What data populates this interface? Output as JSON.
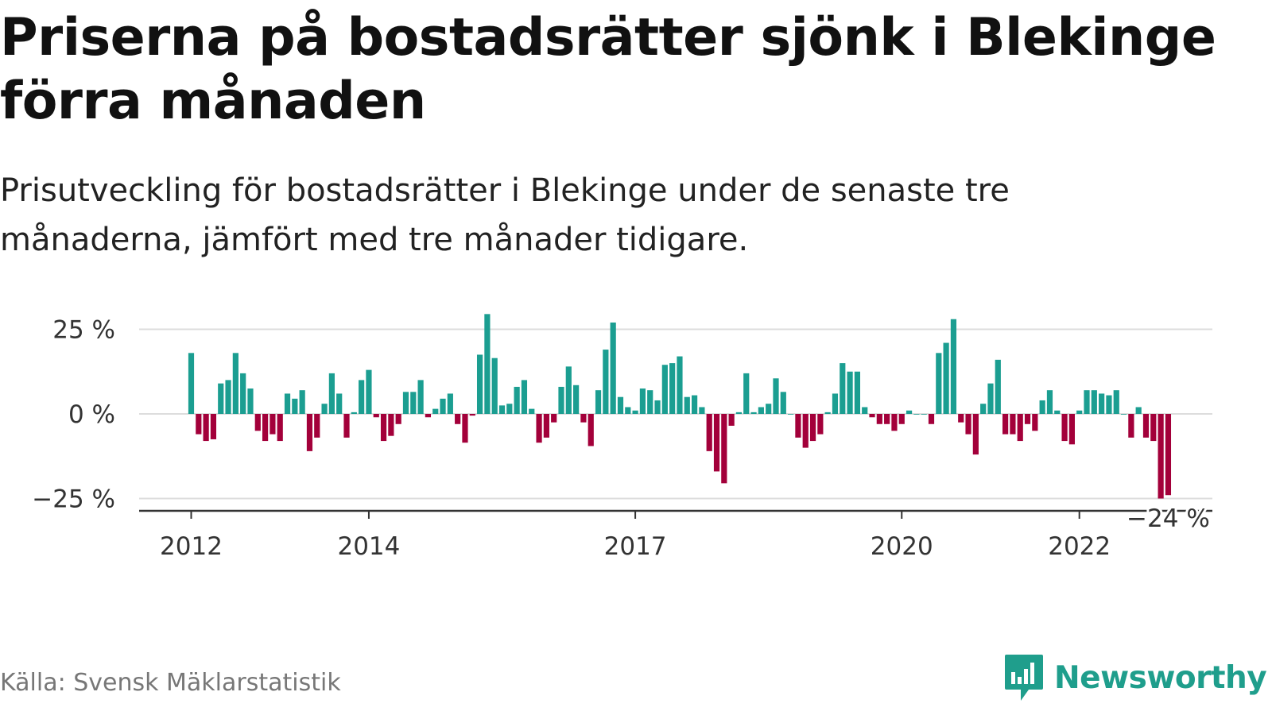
{
  "title": "Priserna på bostadsrätter sjönk i Blekinge förra månaden",
  "subtitle": "Prisutveckling för bostadsrätter i Blekinge under de senaste tre månaderna, jämfört med tre månader tidigare.",
  "source": "Källa: Svensk Mäklarstatistik",
  "brand": {
    "name": "Newsworthy",
    "logo_icon": "newsworthy-chart-bubble-icon"
  },
  "colors": {
    "positive": "#1b9e91",
    "negative": "#a3003a",
    "grid": "#dddddd",
    "axis": "#333333",
    "brand": "#1f9e8c"
  },
  "chart_data": {
    "type": "bar",
    "x_start": "2012-01",
    "y_unit": "%",
    "ylim": [
      -28,
      30
    ],
    "yticks": [
      {
        "value": 25,
        "label": "25 %"
      },
      {
        "value": 0,
        "label": "0 %"
      },
      {
        "value": -25,
        "label": "−25 %"
      }
    ],
    "xticks": [
      {
        "year": 2012,
        "label": "2012"
      },
      {
        "year": 2014,
        "label": "2014"
      },
      {
        "year": 2017,
        "label": "2017"
      },
      {
        "year": 2020,
        "label": "2020"
      },
      {
        "year": 2022,
        "label": "2022"
      }
    ],
    "grid": true,
    "last_value_label": "−24 %",
    "values": [
      18,
      -6,
      -8,
      -7.5,
      9,
      10,
      18,
      12,
      7.5,
      -5,
      -8,
      -6,
      -8,
      6,
      4.5,
      7,
      -11,
      -7,
      3,
      12,
      6,
      -7,
      0.5,
      10,
      13,
      -1,
      -8,
      -6.5,
      -3,
      6.5,
      6.5,
      10,
      -1,
      1.5,
      4.5,
      6,
      -3,
      -8.5,
      -0.5,
      17.5,
      29.5,
      16.5,
      2.5,
      3,
      8,
      10,
      1.5,
      -8.5,
      -7,
      -2.5,
      8,
      14,
      8.5,
      -2.5,
      -9.5,
      7,
      19,
      27,
      5,
      2,
      1,
      7.5,
      7,
      4,
      14.5,
      15,
      17,
      5,
      5.5,
      2,
      -11,
      -17,
      -20.5,
      -3.5,
      0.5,
      12,
      0.5,
      2,
      3,
      10.5,
      6.5,
      0,
      -7,
      -10,
      -8,
      -6,
      0.5,
      6,
      15,
      12.5,
      12.5,
      2,
      -1,
      -3,
      -3,
      -5,
      -3,
      1,
      0,
      0,
      -3,
      18,
      21,
      28,
      -2.5,
      -6,
      -12,
      3,
      9,
      16,
      -6,
      -6,
      -8,
      -3,
      -5,
      4,
      7,
      1,
      -8,
      -9,
      1,
      7,
      7,
      6,
      5.5,
      7,
      0,
      -7,
      2,
      -7,
      -8,
      -25,
      -24
    ]
  }
}
